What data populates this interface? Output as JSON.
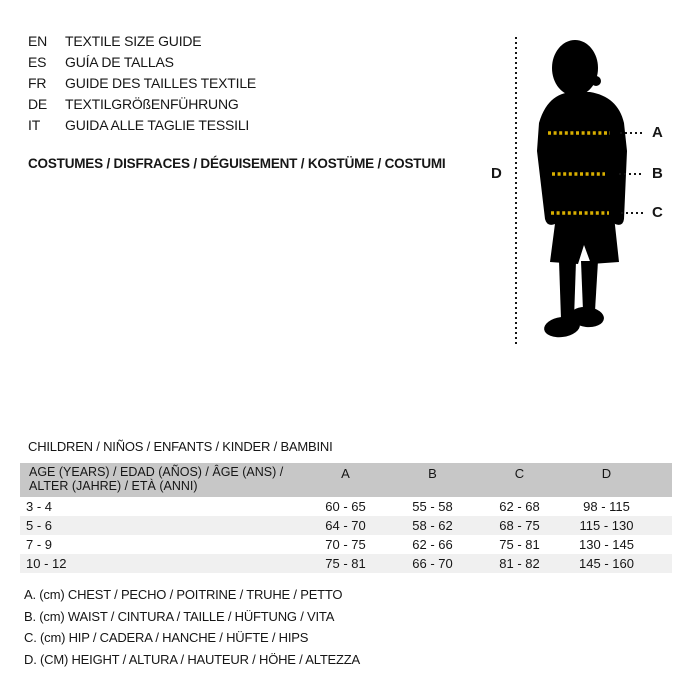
{
  "header": {
    "languages": [
      {
        "code": "EN",
        "label": "TEXTILE SIZE GUIDE"
      },
      {
        "code": "ES",
        "label": "GUÍA DE TALLAS"
      },
      {
        "code": "FR",
        "label": "GUIDE DES TAILLES TEXTILE"
      },
      {
        "code": "DE",
        "label": "TEXTILGRÖßENFÜHRUNG"
      },
      {
        "code": "IT",
        "label": "GUIDA ALLE TAGLIE TESSILI"
      }
    ],
    "category_title": "COSTUMES / DISFRACES / DÉGUISEMENT / KOSTÜME / COSTUMI"
  },
  "figure": {
    "height_label": "D",
    "measure_labels": [
      "A",
      "B",
      "C"
    ],
    "line_color": "#d9af00",
    "silhouette_color": "#000000"
  },
  "size_table": {
    "section_title": "CHILDREN / NIÑOS / ENFANTS / KINDER / BAMBINI",
    "age_header_line1": "AGE (YEARS) / EDAD (AÑOS) / ÂGE (ANS) /",
    "age_header_line2": "ALTER (JAHRE) / ETÀ (ANNI)",
    "columns": [
      "A",
      "B",
      "C",
      "D"
    ],
    "rows": [
      {
        "age": "3 - 4",
        "A": "60 - 65",
        "B": "55 - 58",
        "C": "62 - 68",
        "D": "98 - 115"
      },
      {
        "age": "5 - 6",
        "A": "64 - 70",
        "B": "58 - 62",
        "C": "68 - 75",
        "D": "115 - 130"
      },
      {
        "age": "7 - 9",
        "A": "70 - 75",
        "B": "62 - 66",
        "C": "75 - 81",
        "D": "130 - 145"
      },
      {
        "age": "10 - 12",
        "A": "75 - 81",
        "B": "66 - 70",
        "C": "81 - 82",
        "D": "145 - 160"
      }
    ],
    "header_bg": "#c7c7c7",
    "alt_row_bg": "#f0f0f0"
  },
  "legend": {
    "items": [
      "A. (cm) CHEST / PECHO / POITRINE / TRUHE / PETTO",
      "B. (cm) WAIST / CINTURA / TAILLE / HÜFTUNG / VITA",
      "C. (cm) HIP / CADERA / HANCHE / HÜFTE / HIPS",
      "D. (CM) HEIGHT / ALTURA / HAUTEUR / HÖHE / ALTEZZA"
    ]
  }
}
